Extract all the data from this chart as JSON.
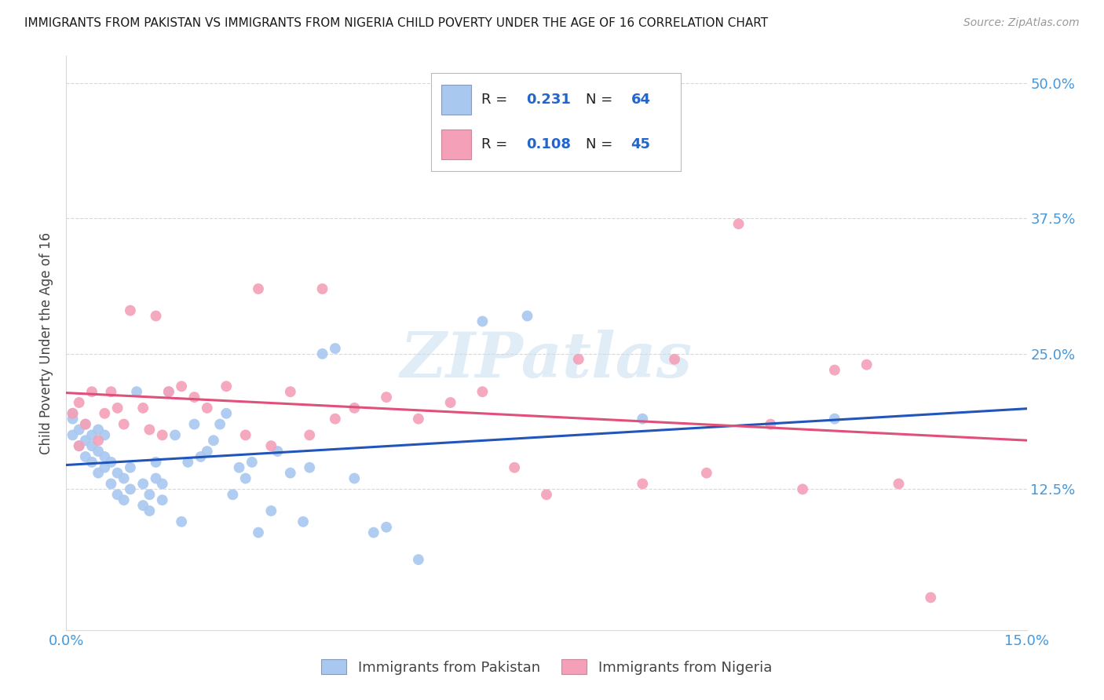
{
  "title": "IMMIGRANTS FROM PAKISTAN VS IMMIGRANTS FROM NIGERIA CHILD POVERTY UNDER THE AGE OF 16 CORRELATION CHART",
  "source": "Source: ZipAtlas.com",
  "ylabel": "Child Poverty Under the Age of 16",
  "xlim": [
    0.0,
    0.15
  ],
  "ylim": [
    -0.005,
    0.525
  ],
  "pakistan_color": "#a8c8f0",
  "nigeria_color": "#f4a0b8",
  "pakistan_line_color": "#2255bb",
  "nigeria_line_color": "#e0507a",
  "pakistan_R": 0.231,
  "pakistan_N": 64,
  "nigeria_R": 0.108,
  "nigeria_N": 45,
  "pakistan_scatter_x": [
    0.001,
    0.001,
    0.001,
    0.002,
    0.002,
    0.003,
    0.003,
    0.003,
    0.004,
    0.004,
    0.004,
    0.005,
    0.005,
    0.005,
    0.006,
    0.006,
    0.006,
    0.007,
    0.007,
    0.008,
    0.008,
    0.009,
    0.009,
    0.01,
    0.01,
    0.011,
    0.012,
    0.012,
    0.013,
    0.013,
    0.014,
    0.014,
    0.015,
    0.015,
    0.016,
    0.017,
    0.018,
    0.019,
    0.02,
    0.021,
    0.022,
    0.023,
    0.024,
    0.025,
    0.026,
    0.027,
    0.028,
    0.029,
    0.03,
    0.032,
    0.033,
    0.035,
    0.037,
    0.038,
    0.04,
    0.042,
    0.045,
    0.048,
    0.05,
    0.055,
    0.065,
    0.072,
    0.09,
    0.12
  ],
  "pakistan_scatter_y": [
    0.19,
    0.175,
    0.195,
    0.165,
    0.18,
    0.155,
    0.17,
    0.185,
    0.15,
    0.165,
    0.175,
    0.14,
    0.16,
    0.18,
    0.145,
    0.155,
    0.175,
    0.13,
    0.15,
    0.12,
    0.14,
    0.115,
    0.135,
    0.125,
    0.145,
    0.215,
    0.11,
    0.13,
    0.105,
    0.12,
    0.135,
    0.15,
    0.115,
    0.13,
    0.215,
    0.175,
    0.095,
    0.15,
    0.185,
    0.155,
    0.16,
    0.17,
    0.185,
    0.195,
    0.12,
    0.145,
    0.135,
    0.15,
    0.085,
    0.105,
    0.16,
    0.14,
    0.095,
    0.145,
    0.25,
    0.255,
    0.135,
    0.085,
    0.09,
    0.06,
    0.28,
    0.285,
    0.19,
    0.19
  ],
  "nigeria_scatter_x": [
    0.001,
    0.002,
    0.002,
    0.003,
    0.004,
    0.005,
    0.006,
    0.007,
    0.008,
    0.009,
    0.01,
    0.012,
    0.013,
    0.014,
    0.015,
    0.016,
    0.018,
    0.02,
    0.022,
    0.025,
    0.028,
    0.03,
    0.032,
    0.035,
    0.038,
    0.04,
    0.042,
    0.045,
    0.05,
    0.055,
    0.06,
    0.065,
    0.07,
    0.075,
    0.08,
    0.09,
    0.095,
    0.1,
    0.105,
    0.11,
    0.115,
    0.12,
    0.125,
    0.13,
    0.135
  ],
  "nigeria_scatter_y": [
    0.195,
    0.165,
    0.205,
    0.185,
    0.215,
    0.17,
    0.195,
    0.215,
    0.2,
    0.185,
    0.29,
    0.2,
    0.18,
    0.285,
    0.175,
    0.215,
    0.22,
    0.21,
    0.2,
    0.22,
    0.175,
    0.31,
    0.165,
    0.215,
    0.175,
    0.31,
    0.19,
    0.2,
    0.21,
    0.19,
    0.205,
    0.215,
    0.145,
    0.12,
    0.245,
    0.13,
    0.245,
    0.14,
    0.37,
    0.185,
    0.125,
    0.235,
    0.24,
    0.13,
    0.025
  ],
  "watermark": "ZIPatlas",
  "background_color": "#ffffff",
  "grid_color": "#d8d8d8",
  "title_color": "#1a1a1a",
  "tick_label_color": "#4499dd"
}
